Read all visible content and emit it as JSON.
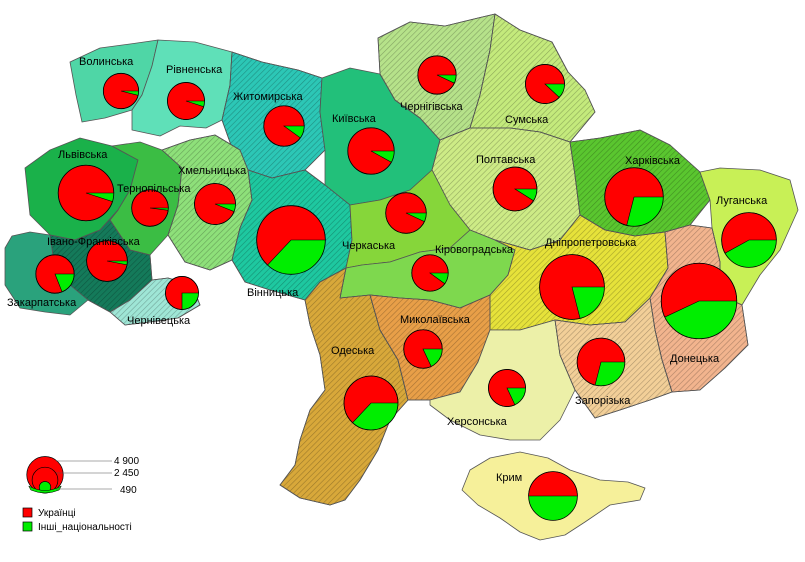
{
  "colors": {
    "ukrainians": "#ff0000",
    "others": "#00ee00",
    "pattern_dark": "#333333"
  },
  "regions": [
    {
      "name": "Волинська",
      "ukrainians": 0.96,
      "total": 1060,
      "fill": "#4fd6a6",
      "pattern": "none"
    },
    {
      "name": "Рівненська",
      "ukrainians": 0.95,
      "total": 1170,
      "fill": "#5fe0b8",
      "pattern": "none"
    },
    {
      "name": "Житомирська",
      "ukrainians": 0.9,
      "total": 1390,
      "fill": "#2cc7b6",
      "pattern": "hatch"
    },
    {
      "name": "Київська",
      "ukrainians": 0.92,
      "total": 1830,
      "fill": "#22c07a",
      "pattern": "none"
    },
    {
      "name": "Чернігівська",
      "ukrainians": 0.93,
      "total": 1250,
      "fill": "#b6e28a",
      "pattern": "hatch"
    },
    {
      "name": "Сумська",
      "ukrainians": 0.88,
      "total": 1300,
      "fill": "#c4ea7c",
      "pattern": "hatch"
    },
    {
      "name": "Львівська",
      "ukrainians": 0.95,
      "total": 2620,
      "fill": "#1ab14a",
      "pattern": "none"
    },
    {
      "name": "Тернопільська",
      "ukrainians": 0.98,
      "total": 1140,
      "fill": "#3bbd44",
      "pattern": "none"
    },
    {
      "name": "Хмельницька",
      "ukrainians": 0.94,
      "total": 1430,
      "fill": "#8ee07a",
      "pattern": "hatch"
    },
    {
      "name": "Полтавська",
      "ukrainians": 0.91,
      "total": 1630,
      "fill": "#cdeb86",
      "pattern": "hatch"
    },
    {
      "name": "Харківська",
      "ukrainians": 0.71,
      "total": 2910,
      "fill": "#5ac62f",
      "pattern": "hatch"
    },
    {
      "name": "Луганська",
      "ukrainians": 0.58,
      "total": 2540,
      "fill": "#c8f056",
      "pattern": "none"
    },
    {
      "name": "Івано-Франківська",
      "ukrainians": 0.97,
      "total": 1410,
      "fill": "#147a5a",
      "pattern": "hatch"
    },
    {
      "name": "Закарпатська",
      "ukrainians": 0.81,
      "total": 1250,
      "fill": "#2aa27c",
      "pattern": "none"
    },
    {
      "name": "Чернівецька",
      "ukrainians": 0.75,
      "total": 930,
      "fill": "#9fe6d6",
      "pattern": "hatch"
    },
    {
      "name": "Вінницька",
      "ukrainians": 0.63,
      "total": 4000,
      "fill": "#1ec8a0",
      "pattern": "hatch"
    },
    {
      "name": "Черкаська",
      "ukrainians": 0.93,
      "total": 1400,
      "fill": "#86d63a",
      "pattern": "none"
    },
    {
      "name": "Кіровоградська",
      "ukrainians": 0.9,
      "total": 1130,
      "fill": "#7ed84e",
      "pattern": "none"
    },
    {
      "name": "Дніпропетровська",
      "ukrainians": 0.79,
      "total": 3560,
      "fill": "#e6e23a",
      "pattern": "hatch"
    },
    {
      "name": "Донецька",
      "ukrainians": 0.57,
      "total": 4840,
      "fill": "#f2b48e",
      "pattern": "hatch"
    },
    {
      "name": "Одеська",
      "ukrainians": 0.63,
      "total": 2470,
      "fill": "#d8a83a",
      "pattern": "hatch"
    },
    {
      "name": "Миколаївська",
      "ukrainians": 0.82,
      "total": 1260,
      "fill": "#e89f48",
      "pattern": "hatch"
    },
    {
      "name": "Херсонська",
      "ukrainians": 0.82,
      "total": 1170,
      "fill": "#ecf0a8",
      "pattern": "none"
    },
    {
      "name": "Запорізька",
      "ukrainians": 0.71,
      "total": 1930,
      "fill": "#f2cf98",
      "pattern": "hatch"
    },
    {
      "name": "Крим",
      "ukrainians": 0.5,
      "total": 2020,
      "fill": "#f6f09a",
      "pattern": "none"
    }
  ],
  "legend": {
    "size_labels": [
      "4 900",
      "2 450",
      "490"
    ],
    "size_values": [
      4900,
      2450,
      490
    ],
    "items": [
      {
        "label": "Українці",
        "color": "#ff0000"
      },
      {
        "label": "Інші_національності",
        "color": "#00ee00"
      }
    ]
  }
}
